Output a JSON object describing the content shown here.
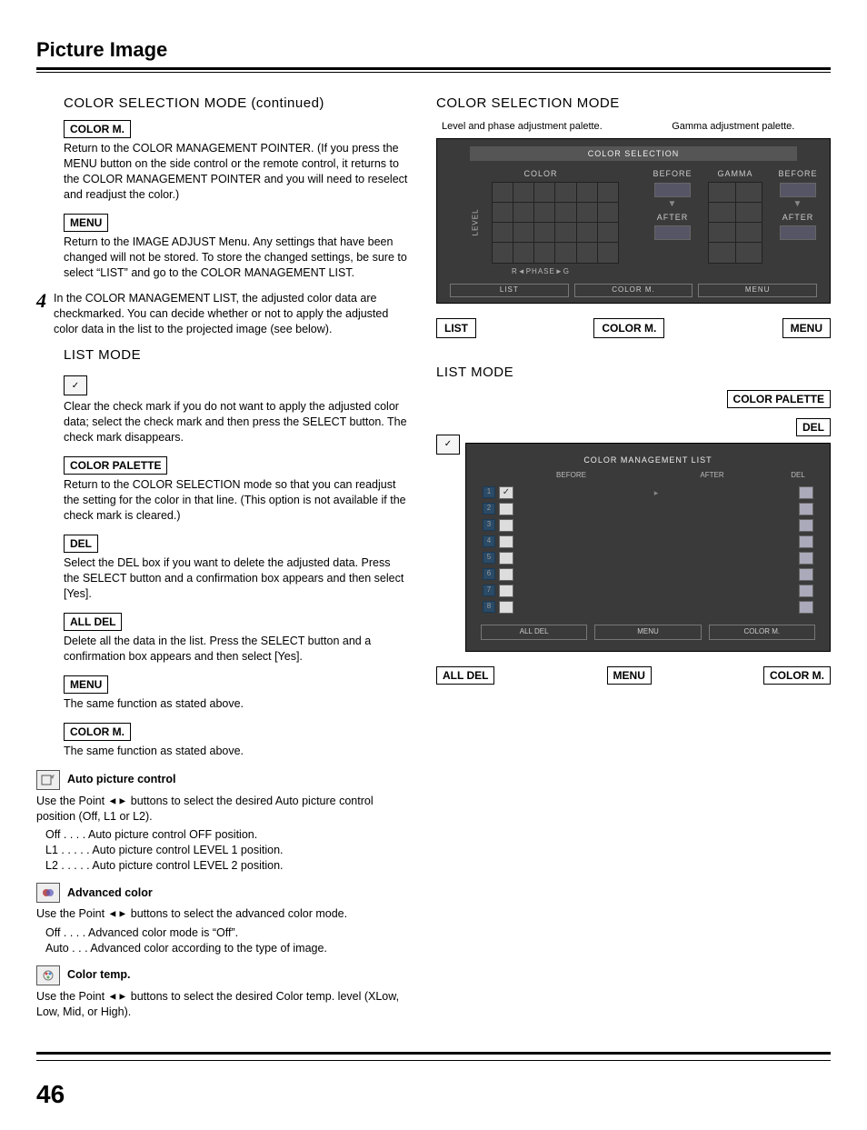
{
  "page": {
    "title": "Picture Image",
    "number": "46"
  },
  "left": {
    "section1_h": "COLOR SELECTION MODE (continued)",
    "color_m_label": "COLOR M.",
    "color_m_text": "Return to the COLOR MANAGEMENT POINTER. (If you press the MENU button on the side control or the remote control, it returns to the COLOR MANAGEMENT POINTER and you will need to reselect and readjust the color.)",
    "menu_label": "MENU",
    "menu_text": "Return to the IMAGE ADJUST Menu. Any settings that have been changed will not be stored. To store the changed settings, be sure to select “LIST” and go to the COLOR MANAGEMENT LIST.",
    "step4_num": "4",
    "step4_text": "In the COLOR MANAGEMENT LIST, the adjusted color data are checkmarked. You can decide whether or not to apply the adjusted color data in the list to the projected image (see below).",
    "list_mode_h": "LIST MODE",
    "check_text": "Clear the check mark if you do not want to apply the adjusted color data; select the check mark and then press the SELECT button. The check mark disappears.",
    "color_palette_label": "COLOR PALETTE",
    "color_palette_text": "Return to the COLOR SELECTION mode so that you can readjust the setting for the color in that line. (This option is not available if the check mark is cleared.)",
    "del_label": "DEL",
    "del_text": "Select the DEL box if you want to delete the adjusted data. Press the SELECT button and a confirmation box appears and then select [Yes].",
    "all_del_label": "ALL DEL",
    "all_del_text": "Delete all the data in the list. Press the SELECT button and a confirmation box appears and then select [Yes].",
    "menu2_label": "MENU",
    "menu2_text": "The same function as stated above.",
    "color_m2_label": "COLOR M.",
    "color_m2_text": "The same function as stated above.",
    "auto_pic_h": "Auto picture control",
    "auto_pic_intro_a": "Use the Point ",
    "auto_pic_intro_b": " buttons to select the desired Auto picture control position (Off, L1 or L2).",
    "auto_off": "Off  . . . .   Auto picture control OFF position.",
    "auto_l1": "L1 . . . . .   Auto picture control LEVEL 1 position.",
    "auto_l2": "L2 . . . . .   Auto picture control LEVEL 2 position.",
    "adv_color_h": "Advanced color",
    "adv_intro_a": "Use the Point ",
    "adv_intro_b": " buttons to select the advanced color mode.",
    "adv_off": "Off  . . . .   Advanced color mode is “Off”.",
    "adv_auto": "Auto  . . .   Advanced color according to the type of image.",
    "ctemp_h": "Color temp.",
    "ctemp_intro_a": "Use the Point ",
    "ctemp_intro_b": " buttons to select the desired Color temp. level (XLow, Low, Mid, or High)."
  },
  "right": {
    "cs_h": "COLOR SELECTION MODE",
    "cap_left": "Level and phase adjustment palette.",
    "cap_right": "Gamma adjustment palette.",
    "osd": {
      "title": "COLOR SELECTION",
      "color_lbl": "COLOR",
      "gamma_lbl": "GAMMA",
      "before": "BEFORE",
      "after": "AFTER",
      "level": "LEVEL",
      "phase": "PHASE",
      "r": "R",
      "g": "G",
      "btn_list": "LIST",
      "btn_colorm": "COLOR M.",
      "btn_menu": "MENU"
    },
    "cs_callouts": {
      "list": "LIST",
      "colorm": "COLOR M.",
      "menu": "MENU"
    },
    "lm_h": "LIST MODE",
    "lm_callouts": {
      "palette": "COLOR PALETTE",
      "del": "DEL",
      "alldel": "ALL DEL",
      "menu": "MENU",
      "colorm": "COLOR M."
    },
    "osd2": {
      "title": "COLOR MANAGEMENT LIST",
      "before": "BEFORE",
      "after": "AFTER",
      "del": "DEL",
      "rows": [
        "1",
        "2",
        "3",
        "4",
        "5",
        "6",
        "7",
        "8"
      ],
      "btn_alldel": "ALL DEL",
      "btn_menu": "MENU",
      "btn_colorm": "COLOR M."
    }
  }
}
